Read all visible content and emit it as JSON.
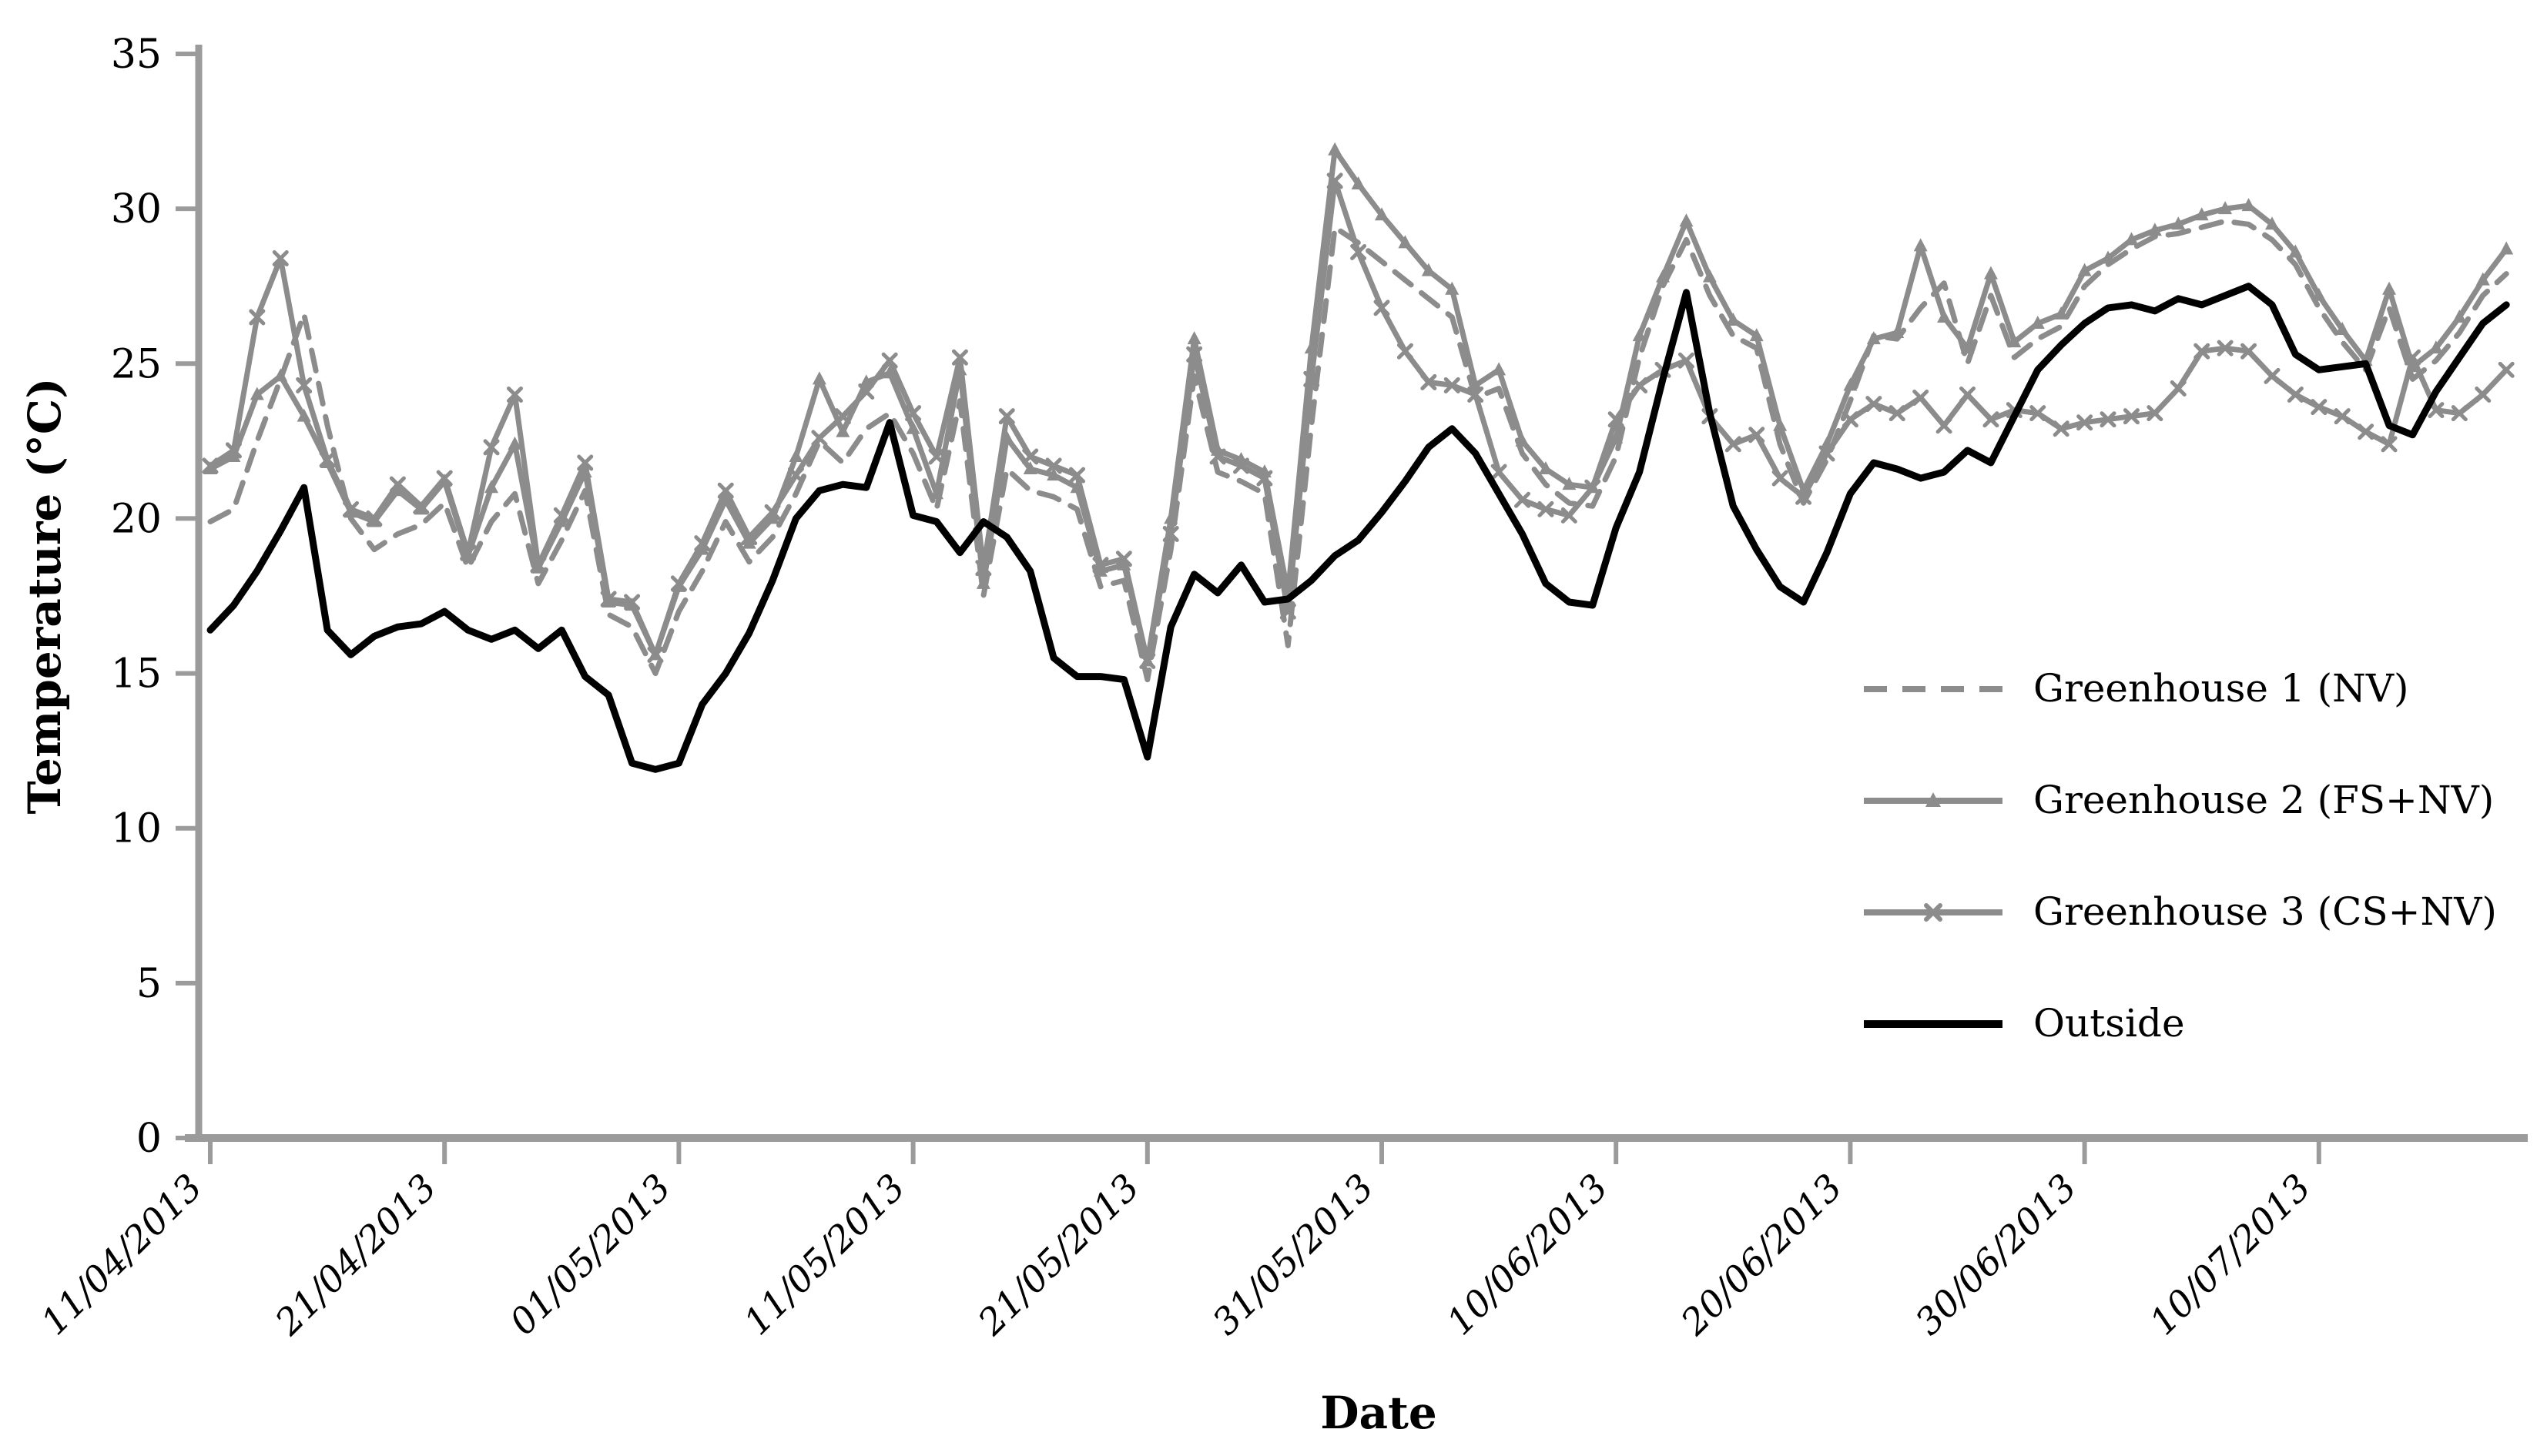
{
  "chart_data": {
    "type": "line",
    "title": "",
    "xlabel": "Date",
    "ylabel": "Temperature (°C)",
    "ylim": [
      0,
      35
    ],
    "yticks": [
      0,
      5,
      10,
      15,
      20,
      25,
      30,
      35
    ],
    "grid": false,
    "legend_position": "right-middle-inside",
    "x_start_date": "11/04/2013",
    "x_end_date": "18/07/2013",
    "x_tick_labels": [
      "11/04/2013",
      "21/04/2013",
      "01/05/2013",
      "11/05/2013",
      "21/05/2013",
      "31/05/2013",
      "10/06/2013",
      "20/06/2013",
      "30/06/2013",
      "10/07/2013"
    ],
    "x_tick_day_indices": [
      0,
      10,
      20,
      30,
      40,
      50,
      60,
      70,
      80,
      90
    ],
    "n_points": 99,
    "colors": {
      "greenhouse_gray": "#8C8C8C",
      "outside_black": "#000000",
      "axis_gray": "#9B9B9B",
      "text_black": "#000000"
    },
    "series": [
      {
        "name": "Greenhouse 1 (NV)",
        "style": "dashed",
        "marker": "none",
        "color": "#8C8C8C",
        "values": [
          19.9,
          20.3,
          22.5,
          24.5,
          26.6,
          23.0,
          20.0,
          19.0,
          19.5,
          19.8,
          20.5,
          18.4,
          19.9,
          20.8,
          17.9,
          19.3,
          20.9,
          16.9,
          16.5,
          15.0,
          17.0,
          18.3,
          19.9,
          18.6,
          19.4,
          20.8,
          22.5,
          21.8,
          22.9,
          23.4,
          22.1,
          20.3,
          23.8,
          17.5,
          21.6,
          20.9,
          20.7,
          20.3,
          17.8,
          18.0,
          14.8,
          19.0,
          24.6,
          21.5,
          21.2,
          20.8,
          15.9,
          23.0,
          29.4,
          28.9,
          28.3,
          27.7,
          27.1,
          26.5,
          23.9,
          24.2,
          22.1,
          21.1,
          20.5,
          20.4,
          22.0,
          25.2,
          27.5,
          29.0,
          27.2,
          25.9,
          25.5,
          22.4,
          20.5,
          21.9,
          23.8,
          25.9,
          25.8,
          26.8,
          27.6,
          25.0,
          27.2,
          25.2,
          25.8,
          26.2,
          27.5,
          28.2,
          28.7,
          29.1,
          29.2,
          29.4,
          29.6,
          29.5,
          29.0,
          28.2,
          26.8,
          25.7,
          24.8,
          26.8,
          24.5,
          25.1,
          26.0,
          27.2,
          27.9
        ]
      },
      {
        "name": "Greenhouse 2 (FS+NV)",
        "style": "solid",
        "marker": "triangle",
        "color": "#8C8C8C",
        "values": [
          21.6,
          22.0,
          24.0,
          24.6,
          23.3,
          21.8,
          20.2,
          19.9,
          20.9,
          20.3,
          21.2,
          18.8,
          21.0,
          22.4,
          18.4,
          19.9,
          21.5,
          17.3,
          17.2,
          15.6,
          17.8,
          19.0,
          20.6,
          19.2,
          20.0,
          22.0,
          24.5,
          22.8,
          24.4,
          24.7,
          22.9,
          20.8,
          24.8,
          17.9,
          22.6,
          21.6,
          21.4,
          21.0,
          18.3,
          18.5,
          15.4,
          20.0,
          25.8,
          22.2,
          21.9,
          21.5,
          17.6,
          25.5,
          31.9,
          30.8,
          29.8,
          28.9,
          28.0,
          27.4,
          24.3,
          24.8,
          22.5,
          21.6,
          21.1,
          21.0,
          22.6,
          25.9,
          27.8,
          29.6,
          27.8,
          26.4,
          25.9,
          23.0,
          20.9,
          22.4,
          24.3,
          25.8,
          26.0,
          28.8,
          26.5,
          25.5,
          27.9,
          25.7,
          26.3,
          26.6,
          28.0,
          28.4,
          29.0,
          29.3,
          29.5,
          29.8,
          30.0,
          30.1,
          29.5,
          28.6,
          27.2,
          26.1,
          25.1,
          27.4,
          24.9,
          25.5,
          26.5,
          27.7,
          28.7
        ]
      },
      {
        "name": "Greenhouse 3 (CS+NV)",
        "style": "solid",
        "marker": "x",
        "color": "#8C8C8C",
        "values": [
          21.7,
          22.2,
          26.5,
          28.4,
          24.3,
          21.9,
          20.3,
          20.0,
          21.1,
          20.4,
          21.3,
          18.9,
          22.3,
          24.0,
          18.5,
          20.1,
          21.8,
          17.4,
          17.3,
          15.6,
          17.9,
          19.2,
          20.9,
          19.4,
          20.2,
          21.4,
          22.6,
          23.3,
          24.1,
          25.1,
          23.4,
          22.0,
          25.2,
          18.4,
          23.3,
          22.0,
          21.7,
          21.4,
          18.5,
          18.7,
          15.4,
          19.5,
          25.3,
          22.0,
          21.7,
          21.3,
          17.0,
          24.5,
          30.9,
          28.6,
          26.8,
          25.4,
          24.4,
          24.3,
          24.0,
          21.5,
          20.6,
          20.3,
          20.1,
          21.0,
          23.2,
          24.3,
          24.8,
          25.1,
          23.3,
          22.4,
          22.7,
          21.3,
          20.7,
          22.1,
          23.2,
          23.7,
          23.4,
          23.9,
          23.0,
          24.0,
          23.2,
          23.5,
          23.4,
          22.9,
          23.1,
          23.2,
          23.3,
          23.4,
          24.2,
          25.4,
          25.5,
          25.4,
          24.6,
          24.0,
          23.6,
          23.3,
          22.8,
          22.4,
          25.2,
          23.5,
          23.4,
          24.0,
          24.8
        ]
      },
      {
        "name": "Outside",
        "style": "solid",
        "marker": "none",
        "color": "#000000",
        "values": [
          16.4,
          17.2,
          18.3,
          19.6,
          21.0,
          16.4,
          15.6,
          16.2,
          16.5,
          16.6,
          17.0,
          16.4,
          16.1,
          16.4,
          15.8,
          16.4,
          14.9,
          14.3,
          12.1,
          11.9,
          12.1,
          14.0,
          15.0,
          16.3,
          18.0,
          20.0,
          20.9,
          21.1,
          21.0,
          23.1,
          20.1,
          19.9,
          18.9,
          19.9,
          19.4,
          18.3,
          15.5,
          14.9,
          14.9,
          14.8,
          12.3,
          16.5,
          18.2,
          17.6,
          18.5,
          17.3,
          17.4,
          18.0,
          18.8,
          19.3,
          20.2,
          21.2,
          22.3,
          22.9,
          22.1,
          20.8,
          19.5,
          17.9,
          17.3,
          17.2,
          19.7,
          21.5,
          24.5,
          27.3,
          23.4,
          20.4,
          19.0,
          17.8,
          17.3,
          18.9,
          20.8,
          21.8,
          21.6,
          21.3,
          21.5,
          22.2,
          21.8,
          23.3,
          24.8,
          25.6,
          26.3,
          26.8,
          26.9,
          26.7,
          27.1,
          26.9,
          27.2,
          27.5,
          26.9,
          25.3,
          24.8,
          24.9,
          25.0,
          23.0,
          22.7,
          24.1,
          25.2,
          26.3,
          26.9
        ]
      }
    ],
    "legend_labels": [
      "Greenhouse 1 (NV)",
      "Greenhouse 2 (FS+NV)",
      "Greenhouse 3 (CS+NV)",
      "Outside"
    ]
  }
}
